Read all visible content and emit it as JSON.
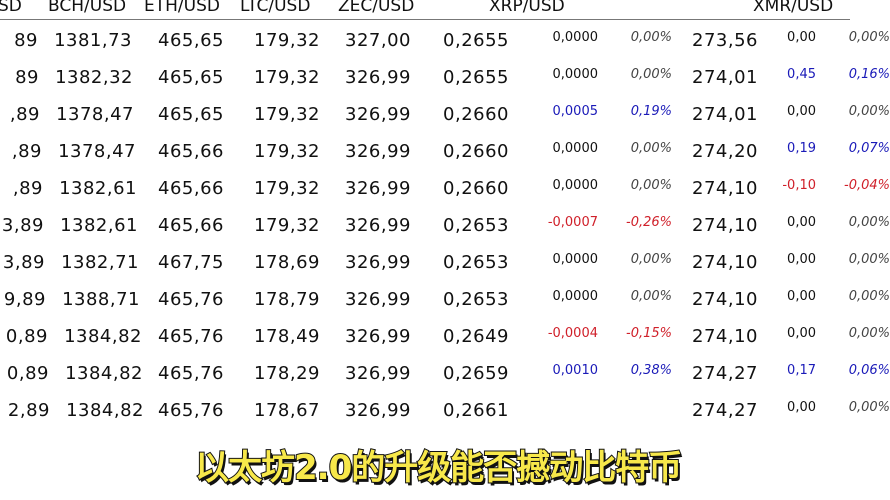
{
  "headers": {
    "btc_partial": "SD",
    "bch": "BCH/USD",
    "eth": "ETH/USD",
    "ltc": "LTC/USD",
    "zec": "ZEC/USD",
    "xrp": "XRP/USD",
    "xmr": "XMR/USD"
  },
  "colors": {
    "positive": "#1a1ab8",
    "negative": "#d0202a",
    "subtitle": "#f7e84a"
  },
  "rows": [
    {
      "btc": "89",
      "bch": "1381,73",
      "eth": "465,65",
      "ltc": "179,32",
      "zec": "327,00",
      "xrp": "0,2655",
      "xrp_chg": "0,0000",
      "xrp_pct": "0,00%",
      "xmr": "273,56",
      "xmr_chg": "0,00",
      "xmr_pct": "0,00%",
      "xrp_dir": "zero",
      "xmr_dir": "zero"
    },
    {
      "btc": "89",
      "bch": "1382,32",
      "eth": "465,65",
      "ltc": "179,32",
      "zec": "326,99",
      "xrp": "0,2655",
      "xrp_chg": "0,0000",
      "xrp_pct": "0,00%",
      "xmr": "274,01",
      "xmr_chg": "0,45",
      "xmr_pct": "0,16%",
      "xrp_dir": "zero",
      "xmr_dir": "pos"
    },
    {
      "btc": ",89",
      "bch": "1378,47",
      "eth": "465,65",
      "ltc": "179,32",
      "zec": "326,99",
      "xrp": "0,2660",
      "xrp_chg": "0,0005",
      "xrp_pct": "0,19%",
      "xmr": "274,01",
      "xmr_chg": "0,00",
      "xmr_pct": "0,00%",
      "xrp_dir": "pos",
      "xmr_dir": "zero"
    },
    {
      "btc": ",89",
      "bch": "1378,47",
      "eth": "465,66",
      "ltc": "179,32",
      "zec": "326,99",
      "xrp": "0,2660",
      "xrp_chg": "0,0000",
      "xrp_pct": "0,00%",
      "xmr": "274,20",
      "xmr_chg": "0,19",
      "xmr_pct": "0,07%",
      "xrp_dir": "zero",
      "xmr_dir": "pos"
    },
    {
      "btc": ",89",
      "bch": "1382,61",
      "eth": "465,66",
      "ltc": "179,32",
      "zec": "326,99",
      "xrp": "0,2660",
      "xrp_chg": "0,0000",
      "xrp_pct": "0,00%",
      "xmr": "274,10",
      "xmr_chg": "-0,10",
      "xmr_pct": "-0,04%",
      "xrp_dir": "zero",
      "xmr_dir": "neg"
    },
    {
      "btc": "3,89",
      "bch": "1382,61",
      "eth": "465,66",
      "ltc": "179,32",
      "zec": "326,99",
      "xrp": "0,2653",
      "xrp_chg": "-0,0007",
      "xrp_pct": "-0,26%",
      "xmr": "274,10",
      "xmr_chg": "0,00",
      "xmr_pct": "0,00%",
      "xrp_dir": "neg",
      "xmr_dir": "zero"
    },
    {
      "btc": "3,89",
      "bch": "1382,71",
      "eth": "467,75",
      "ltc": "178,69",
      "zec": "326,99",
      "xrp": "0,2653",
      "xrp_chg": "0,0000",
      "xrp_pct": "0,00%",
      "xmr": "274,10",
      "xmr_chg": "0,00",
      "xmr_pct": "0,00%",
      "xrp_dir": "zero",
      "xmr_dir": "zero"
    },
    {
      "btc": "9,89",
      "bch": "1388,71",
      "eth": "465,76",
      "ltc": "178,79",
      "zec": "326,99",
      "xrp": "0,2653",
      "xrp_chg": "0,0000",
      "xrp_pct": "0,00%",
      "xmr": "274,10",
      "xmr_chg": "0,00",
      "xmr_pct": "0,00%",
      "xrp_dir": "zero",
      "xmr_dir": "zero"
    },
    {
      "btc": "0,89",
      "bch": "1384,82",
      "eth": "465,76",
      "ltc": "178,49",
      "zec": "326,99",
      "xrp": "0,2649",
      "xrp_chg": "-0,0004",
      "xrp_pct": "-0,15%",
      "xmr": "274,10",
      "xmr_chg": "0,00",
      "xmr_pct": "0,00%",
      "xrp_dir": "neg",
      "xmr_dir": "zero"
    },
    {
      "btc": "0,89",
      "bch": "1384,82",
      "eth": "465,76",
      "ltc": "178,29",
      "zec": "326,99",
      "xrp": "0,2659",
      "xrp_chg": "0,0010",
      "xrp_pct": "0,38%",
      "xmr": "274,27",
      "xmr_chg": "0,17",
      "xmr_pct": "0,06%",
      "xrp_dir": "pos",
      "xmr_dir": "pos"
    },
    {
      "btc": "2,89",
      "bch": "1384,82",
      "eth": "465,76",
      "ltc": "178,67",
      "zec": "326,99",
      "xrp": "0,2661",
      "xrp_chg": "",
      "xrp_pct": "",
      "xmr": "274,27",
      "xmr_chg": "0,00",
      "xmr_pct": "0,00%",
      "xrp_dir": "pos",
      "xmr_dir": "zero"
    }
  ],
  "subtitle": "以太坊2.0的升级能否撼动比特币"
}
